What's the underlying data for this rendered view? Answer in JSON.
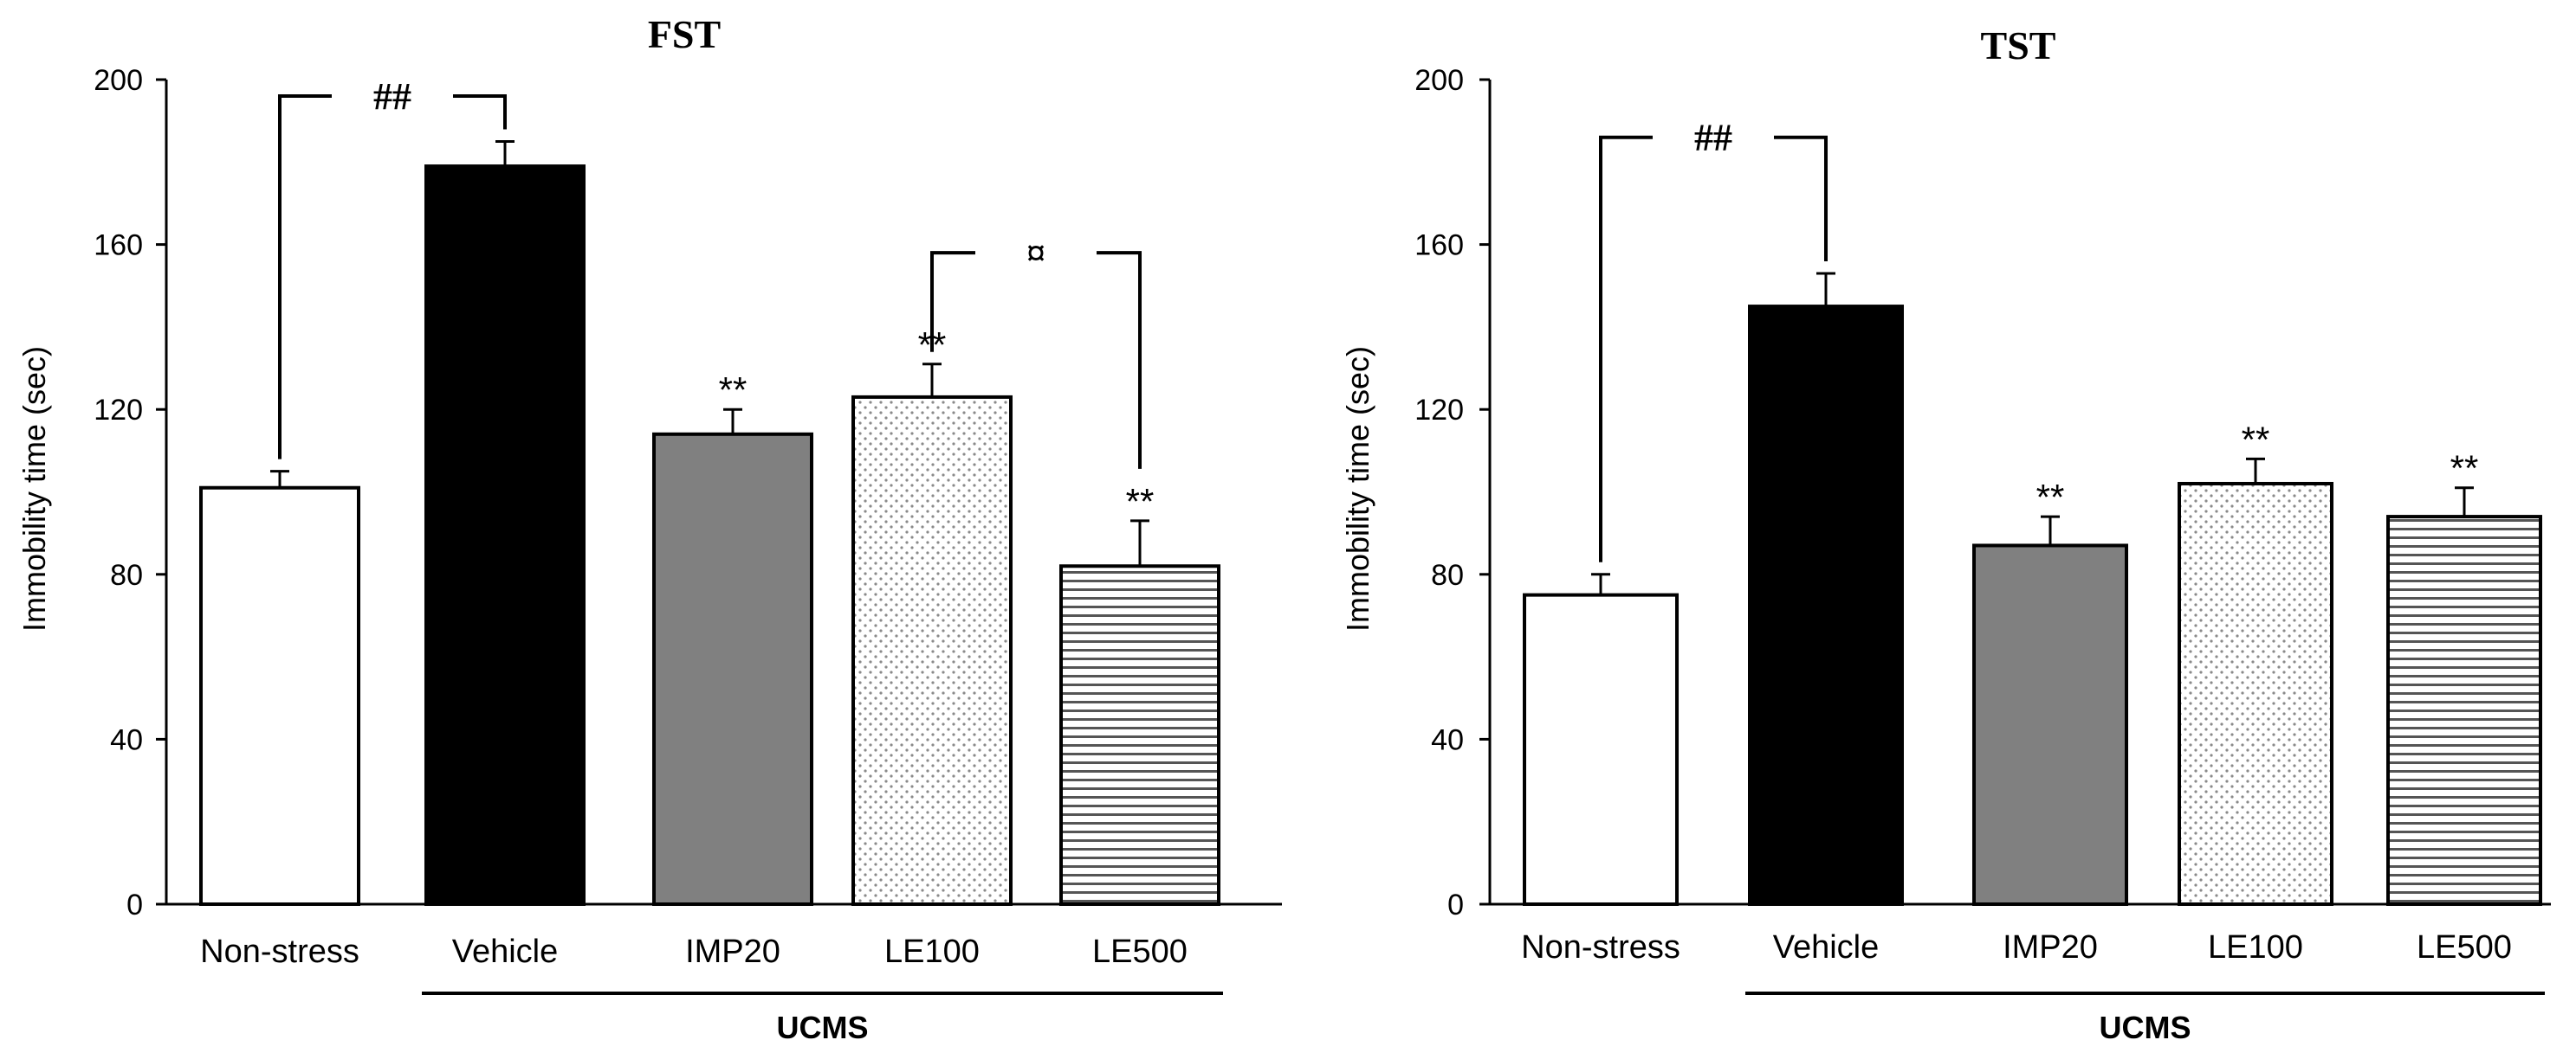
{
  "chart_data": [
    {
      "type": "bar",
      "title": "FST",
      "ylabel": "Immobility time (sec)",
      "xlabel": "",
      "ylim": [
        0,
        200
      ],
      "yticks": [
        0,
        40,
        80,
        120,
        160,
        200
      ],
      "categories": [
        "Non-stress",
        "Vehicle",
        "IMP20",
        "LE100",
        "LE500"
      ],
      "values": [
        101,
        179,
        114,
        123,
        82
      ],
      "errors": [
        4,
        6,
        6,
        8,
        11
      ],
      "fills": [
        "white",
        "black",
        "gray",
        "dots",
        "hlines"
      ],
      "significance": [
        "",
        "",
        "**",
        "**",
        "**"
      ],
      "group_bracket": {
        "label": "UCMS",
        "from": 1,
        "to": 4
      },
      "comparisons": [
        {
          "from": 0,
          "to": 1,
          "label": "##",
          "y": 196
        },
        {
          "from": 3,
          "to": 4,
          "label": "¤",
          "y": 158
        }
      ]
    },
    {
      "type": "bar",
      "title": "TST",
      "ylabel": "Immobility time (sec)",
      "xlabel": "",
      "ylim": [
        0,
        200
      ],
      "yticks": [
        0,
        40,
        80,
        120,
        160,
        200
      ],
      "categories": [
        "Non-stress",
        "Vehicle",
        "IMP20",
        "LE100",
        "LE500"
      ],
      "values": [
        75,
        145,
        87,
        102,
        94
      ],
      "errors": [
        5,
        8,
        7,
        6,
        7
      ],
      "fills": [
        "white",
        "black",
        "gray",
        "dots",
        "hlines"
      ],
      "significance": [
        "",
        "",
        "**",
        "**",
        "**"
      ],
      "group_bracket": {
        "label": "UCMS",
        "from": 1,
        "to": 4
      },
      "comparisons": [
        {
          "from": 0,
          "to": 1,
          "label": "##",
          "y": 186
        }
      ]
    }
  ]
}
